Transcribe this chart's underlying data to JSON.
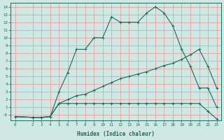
{
  "xlabel": "Humidex (Indice chaleur)",
  "bg_color": "#cfe8e4",
  "grid_color": "#e8a0a0",
  "line_color": "#1a6b5a",
  "xlim": [
    -0.5,
    23.5
  ],
  "ylim": [
    -0.7,
    14.5
  ],
  "xticks": [
    0,
    2,
    3,
    4,
    5,
    6,
    7,
    8,
    9,
    10,
    11,
    12,
    13,
    14,
    15,
    16,
    17,
    18,
    19,
    20,
    21,
    22,
    23
  ],
  "yticks": [
    0,
    1,
    2,
    3,
    4,
    5,
    6,
    7,
    8,
    9,
    10,
    11,
    12,
    13,
    14
  ],
  "line1_x": [
    0,
    2,
    3,
    4,
    5,
    6,
    7,
    8,
    9,
    10,
    11,
    12,
    13,
    14,
    15,
    16,
    17,
    18,
    19,
    20,
    21,
    22,
    23
  ],
  "line1_y": [
    -0.2,
    -0.3,
    -0.3,
    -0.2,
    3.0,
    5.5,
    8.5,
    8.5,
    10.0,
    10.0,
    12.7,
    12.0,
    12.0,
    12.0,
    13.2,
    14.0,
    13.2,
    11.5,
    8.5,
    6.3,
    3.5,
    3.5,
    1.0
  ],
  "line2_x": [
    0,
    2,
    3,
    4,
    5,
    6,
    7,
    8,
    9,
    10,
    11,
    12,
    13,
    14,
    15,
    16,
    17,
    18,
    19,
    20,
    21,
    22,
    23
  ],
  "line2_y": [
    -0.2,
    -0.3,
    -0.3,
    -0.2,
    1.5,
    2.0,
    2.5,
    2.7,
    3.2,
    3.7,
    4.2,
    4.7,
    5.0,
    5.3,
    5.6,
    6.0,
    6.4,
    6.7,
    7.2,
    7.8,
    8.5,
    6.3,
    3.5
  ],
  "line3_x": [
    0,
    2,
    3,
    4,
    5,
    6,
    7,
    8,
    9,
    10,
    11,
    12,
    13,
    14,
    15,
    16,
    17,
    18,
    19,
    20,
    21,
    22,
    23
  ],
  "line3_y": [
    -0.2,
    -0.3,
    -0.3,
    -0.2,
    1.5,
    1.5,
    1.5,
    1.5,
    1.5,
    1.5,
    1.5,
    1.5,
    1.5,
    1.5,
    1.5,
    1.5,
    1.5,
    1.5,
    1.5,
    1.5,
    1.5,
    0.5,
    -0.5
  ]
}
